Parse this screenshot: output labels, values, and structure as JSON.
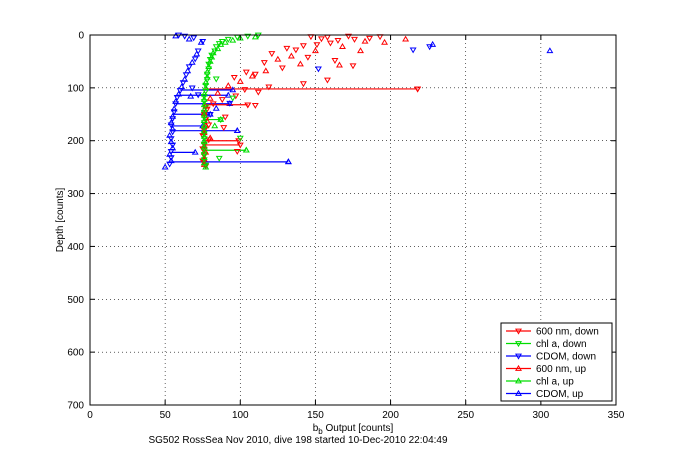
{
  "chart_data": {
    "type": "scatter",
    "title": "",
    "caption": "SG502 RossSea Nov 2010, dive 198 started 10-Dec-2010 22:04:49",
    "xlabel_main": "b",
    "xlabel_sub": "b",
    "xlabel_rest": " Output [counts]",
    "ylabel": "Depth [counts]",
    "xlim": [
      0,
      350
    ],
    "ylim": [
      700,
      0
    ],
    "y_reversed": true,
    "grid": true,
    "grid_style": "dotted",
    "legend_position": "bottom-right",
    "x_ticks": [
      0,
      50,
      100,
      150,
      200,
      250,
      300,
      350
    ],
    "y_ticks": [
      0,
      100,
      200,
      300,
      400,
      500,
      600,
      700
    ],
    "x_tick_labels": [
      "0",
      "50",
      "100",
      "150",
      "200",
      "250",
      "300",
      "350"
    ],
    "y_tick_labels": [
      "0",
      "100",
      "200",
      "300",
      "400",
      "500",
      "600",
      "700"
    ],
    "series": [
      {
        "name": "600 nm, down",
        "color": "#ff0000",
        "marker": "triangle-down",
        "points": [
          [
            193,
            3
          ],
          [
            186,
            6
          ],
          [
            172,
            2
          ],
          [
            165,
            10
          ],
          [
            158,
            4
          ],
          [
            154,
            7
          ],
          [
            147,
            3
          ],
          [
            176,
            8
          ],
          [
            160,
            15
          ],
          [
            142,
            20
          ],
          [
            151,
            18
          ],
          [
            131,
            25
          ],
          [
            137,
            28
          ],
          [
            121,
            35
          ],
          [
            145,
            42
          ],
          [
            163,
            48
          ],
          [
            175,
            58
          ],
          [
            116,
            52
          ],
          [
            128,
            62
          ],
          [
            104,
            70
          ],
          [
            110,
            74
          ],
          [
            96,
            80
          ],
          [
            158,
            85
          ],
          [
            142,
            92
          ],
          [
            119,
            98
          ],
          [
            103,
            103
          ],
          [
            112,
            108
          ],
          [
            97,
            115
          ],
          [
            88,
            122
          ],
          [
            82,
            130
          ],
          [
            110,
            133
          ],
          [
            78,
            140
          ],
          [
            76,
            150
          ],
          [
            77,
            160
          ],
          [
            79,
            170
          ],
          [
            89,
            175
          ],
          [
            76,
            180
          ],
          [
            75,
            190
          ],
          [
            79,
            198
          ],
          [
            99,
            200
          ],
          [
            76,
            207
          ],
          [
            75,
            215
          ],
          [
            98,
            220
          ],
          [
            76,
            228
          ],
          [
            75,
            238
          ],
          [
            77,
            248
          ],
          [
            218,
            102
          ],
          [
            105,
            132
          ],
          [
            90,
            155
          ]
        ]
      },
      {
        "name": "chl a, down",
        "color": "#00dd00",
        "marker": "triangle-down",
        "points": [
          [
            112,
            0
          ],
          [
            105,
            2
          ],
          [
            98,
            4
          ],
          [
            92,
            8
          ],
          [
            88,
            12
          ],
          [
            86,
            16
          ],
          [
            84,
            22
          ],
          [
            83,
            30
          ],
          [
            81,
            38
          ],
          [
            80,
            46
          ],
          [
            79,
            55
          ],
          [
            79,
            64
          ],
          [
            78,
            74
          ],
          [
            78,
            84
          ],
          [
            77,
            95
          ],
          [
            77,
            106
          ],
          [
            76,
            116
          ],
          [
            76,
            126
          ],
          [
            77,
            136
          ],
          [
            76,
            146
          ],
          [
            76,
            156
          ],
          [
            76,
            166
          ],
          [
            76,
            176
          ],
          [
            76,
            186
          ],
          [
            76,
            196
          ],
          [
            76,
            206
          ],
          [
            76,
            216
          ],
          [
            76,
            226
          ],
          [
            76,
            236
          ],
          [
            77,
            246
          ],
          [
            84,
            83
          ],
          [
            95,
            119
          ],
          [
            87,
            160
          ],
          [
            100,
            195
          ],
          [
            86,
            233
          ]
        ]
      },
      {
        "name": "CDOM, down",
        "color": "#0000ff",
        "marker": "triangle-down",
        "points": [
          [
            59,
            0
          ],
          [
            63,
            2
          ],
          [
            69,
            5
          ],
          [
            75,
            12
          ],
          [
            72,
            30
          ],
          [
            70,
            45
          ],
          [
            66,
            60
          ],
          [
            64,
            75
          ],
          [
            62,
            90
          ],
          [
            60,
            105
          ],
          [
            58,
            118
          ],
          [
            57,
            130
          ],
          [
            56,
            145
          ],
          [
            55,
            158
          ],
          [
            54,
            170
          ],
          [
            55,
            183
          ],
          [
            54,
            196
          ],
          [
            55,
            208
          ],
          [
            54,
            220
          ],
          [
            54,
            232
          ],
          [
            53,
            244
          ],
          [
            68,
            100
          ],
          [
            72,
            113
          ],
          [
            80,
            150
          ],
          [
            226,
            22
          ],
          [
            215,
            28
          ],
          [
            152,
            64
          ],
          [
            93,
            129
          ]
        ]
      },
      {
        "name": "600 nm, up",
        "color": "#ff0000",
        "marker": "triangle-up",
        "points": [
          [
            210,
            8
          ],
          [
            196,
            14
          ],
          [
            183,
            12
          ],
          [
            168,
            22
          ],
          [
            150,
            30
          ],
          [
            134,
            40
          ],
          [
            125,
            46
          ],
          [
            140,
            55
          ],
          [
            117,
            68
          ],
          [
            108,
            78
          ],
          [
            100,
            88
          ],
          [
            92,
            96
          ],
          [
            85,
            110
          ],
          [
            80,
            120
          ],
          [
            77,
            135
          ],
          [
            76,
            148
          ],
          [
            78,
            163
          ],
          [
            77,
            172
          ],
          [
            76,
            185
          ],
          [
            80,
            195
          ],
          [
            76,
            210
          ],
          [
            77,
            222
          ],
          [
            76,
            235
          ],
          [
            76,
            245
          ],
          [
            180,
            30
          ],
          [
            166,
            57
          ]
        ]
      },
      {
        "name": "chl a, up",
        "color": "#00dd00",
        "marker": "triangle-up",
        "points": [
          [
            110,
            4
          ],
          [
            100,
            6
          ],
          [
            95,
            10
          ],
          [
            90,
            14
          ],
          [
            87,
            18
          ],
          [
            85,
            26
          ],
          [
            82,
            34
          ],
          [
            81,
            42
          ],
          [
            80,
            50
          ],
          [
            79,
            60
          ],
          [
            78,
            70
          ],
          [
            78,
            80
          ],
          [
            77,
            90
          ],
          [
            77,
            100
          ],
          [
            76,
            112
          ],
          [
            76,
            122
          ],
          [
            76,
            132
          ],
          [
            76,
            142
          ],
          [
            76,
            152
          ],
          [
            76,
            162
          ],
          [
            76,
            172
          ],
          [
            76,
            182
          ],
          [
            76,
            192
          ],
          [
            76,
            202
          ],
          [
            76,
            212
          ],
          [
            76,
            222
          ],
          [
            76,
            232
          ],
          [
            76,
            242
          ],
          [
            77,
            250
          ],
          [
            104,
            218
          ],
          [
            83,
            172
          ]
        ]
      },
      {
        "name": "CDOM, up",
        "color": "#0000ff",
        "marker": "triangle-up",
        "points": [
          [
            306,
            30
          ],
          [
            228,
            18
          ],
          [
            57,
            2
          ],
          [
            66,
            8
          ],
          [
            74,
            14
          ],
          [
            71,
            36
          ],
          [
            68,
            52
          ],
          [
            65,
            68
          ],
          [
            63,
            84
          ],
          [
            61,
            98
          ],
          [
            59,
            112
          ],
          [
            57,
            126
          ],
          [
            56,
            140
          ],
          [
            55,
            154
          ],
          [
            54,
            166
          ],
          [
            55,
            178
          ],
          [
            53,
            190
          ],
          [
            54,
            202
          ],
          [
            55,
            214
          ],
          [
            53,
            226
          ],
          [
            54,
            238
          ],
          [
            50,
            250
          ],
          [
            132,
            240
          ],
          [
            98,
            181
          ],
          [
            84,
            139
          ],
          [
            67,
            116
          ]
        ]
      }
    ],
    "horizontal_spikes": [
      {
        "color": "#ff0000",
        "y": 102,
        "x_from": 76,
        "x_to": 218
      },
      {
        "color": "#0000ff",
        "y": 104,
        "x_from": 60,
        "x_to": 95
      },
      {
        "color": "#0000ff",
        "y": 114,
        "x_from": 58,
        "x_to": 92
      },
      {
        "color": "#0000ff",
        "y": 130,
        "x_from": 57,
        "x_to": 93
      },
      {
        "color": "#ff0000",
        "y": 132,
        "x_from": 77,
        "x_to": 105
      },
      {
        "color": "#0000ff",
        "y": 150,
        "x_from": 55,
        "x_to": 80
      },
      {
        "color": "#00dd00",
        "y": 160,
        "x_from": 76,
        "x_to": 87
      },
      {
        "color": "#0000ff",
        "y": 172,
        "x_from": 54,
        "x_to": 75
      },
      {
        "color": "#0000ff",
        "y": 181,
        "x_from": 54,
        "x_to": 98
      },
      {
        "color": "#ff0000",
        "y": 200,
        "x_from": 76,
        "x_to": 99
      },
      {
        "color": "#ff0000",
        "y": 208,
        "x_from": 76,
        "x_to": 100
      },
      {
        "color": "#00dd00",
        "y": 218,
        "x_from": 76,
        "x_to": 104
      },
      {
        "color": "#0000ff",
        "y": 222,
        "x_from": 54,
        "x_to": 70
      },
      {
        "color": "#0000ff",
        "y": 240,
        "x_from": 53,
        "x_to": 132
      }
    ]
  }
}
